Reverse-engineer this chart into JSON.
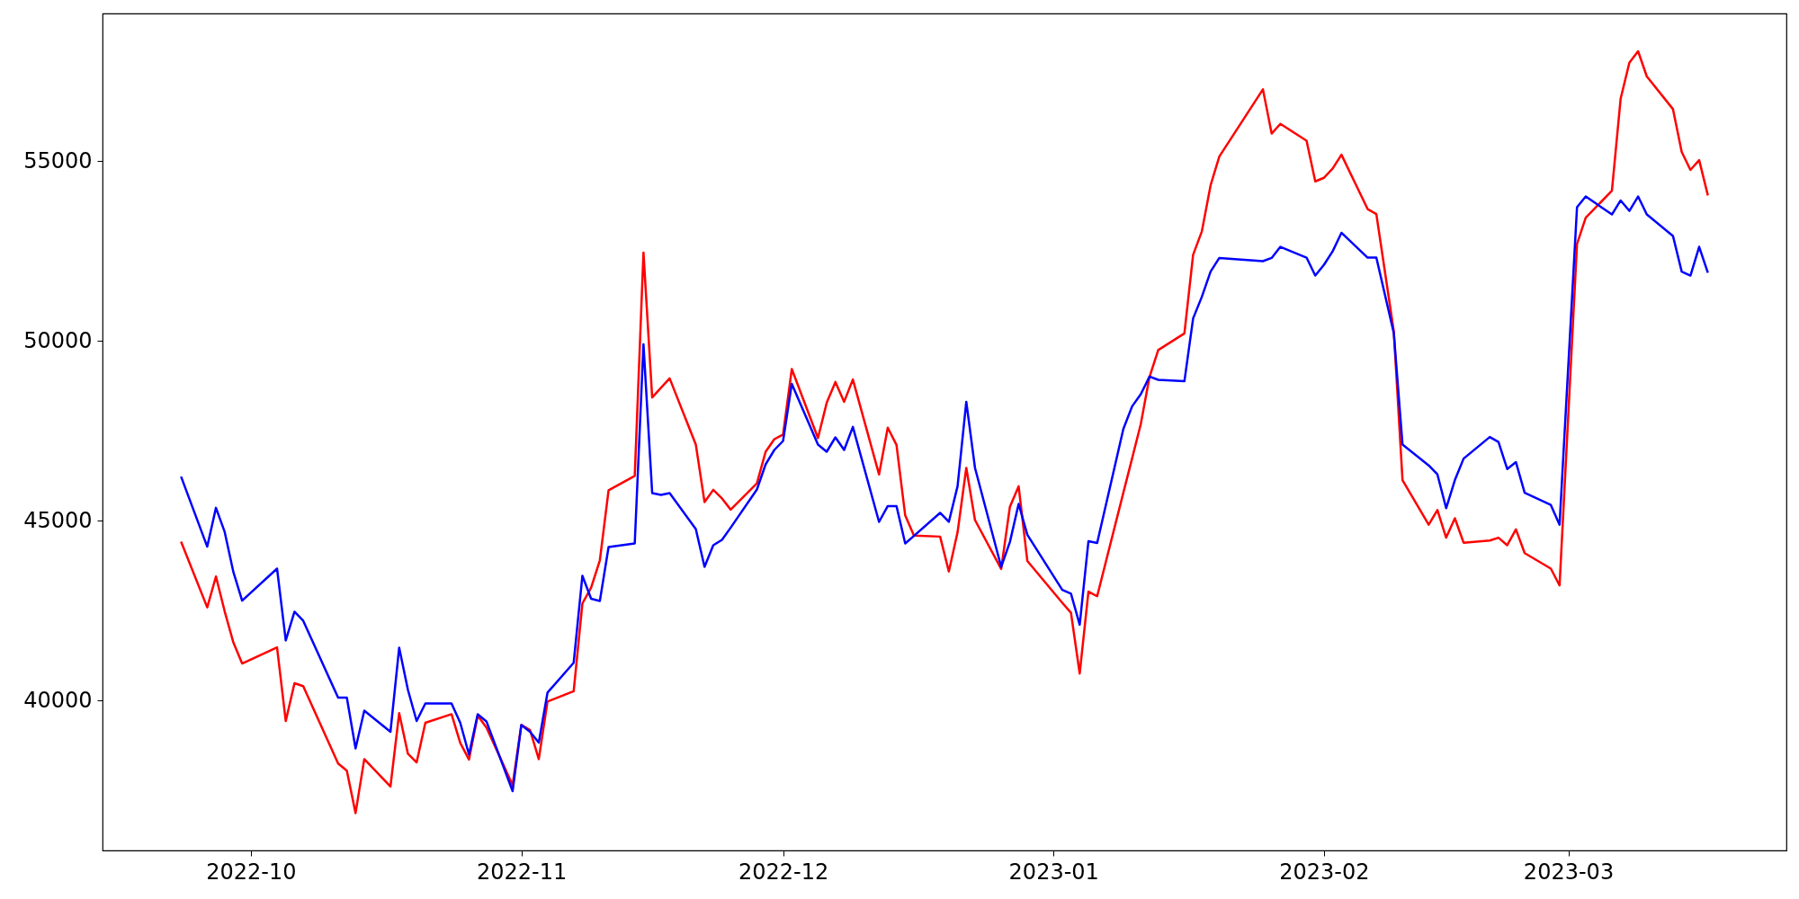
{
  "chart_data": {
    "type": "line",
    "x": [
      "2022-09-23",
      "2022-09-26",
      "2022-09-27",
      "2022-09-28",
      "2022-09-29",
      "2022-09-30",
      "2022-10-04",
      "2022-10-05",
      "2022-10-06",
      "2022-10-07",
      "2022-10-11",
      "2022-10-12",
      "2022-10-13",
      "2022-10-14",
      "2022-10-17",
      "2022-10-18",
      "2022-10-19",
      "2022-10-20",
      "2022-10-21",
      "2022-10-24",
      "2022-10-25",
      "2022-10-26",
      "2022-10-27",
      "2022-10-28",
      "2022-10-31",
      "2022-11-01",
      "2022-11-02",
      "2022-11-03",
      "2022-11-04",
      "2022-11-07",
      "2022-11-08",
      "2022-11-09",
      "2022-11-10",
      "2022-11-11",
      "2022-11-14",
      "2022-11-15",
      "2022-11-16",
      "2022-11-17",
      "2022-11-18",
      "2022-11-21",
      "2022-11-22",
      "2022-11-23",
      "2022-11-24",
      "2022-11-25",
      "2022-11-28",
      "2022-11-29",
      "2022-11-30",
      "2022-12-01",
      "2022-12-02",
      "2022-12-05",
      "2022-12-06",
      "2022-12-07",
      "2022-12-08",
      "2022-12-09",
      "2022-12-12",
      "2022-12-13",
      "2022-12-14",
      "2022-12-15",
      "2022-12-16",
      "2022-12-19",
      "2022-12-20",
      "2022-12-21",
      "2022-12-22",
      "2022-12-23",
      "2022-12-26",
      "2022-12-27",
      "2022-12-28",
      "2022-12-29",
      "2023-01-02",
      "2023-01-03",
      "2023-01-04",
      "2023-01-05",
      "2023-01-06",
      "2023-01-09",
      "2023-01-10",
      "2023-01-11",
      "2023-01-12",
      "2023-01-13",
      "2023-01-16",
      "2023-01-17",
      "2023-01-18",
      "2023-01-19",
      "2023-01-20",
      "2023-01-25",
      "2023-01-26",
      "2023-01-27",
      "2023-01-30",
      "2023-01-31",
      "2023-02-01",
      "2023-02-02",
      "2023-02-03",
      "2023-02-06",
      "2023-02-07",
      "2023-02-09",
      "2023-02-10",
      "2023-02-13",
      "2023-02-14",
      "2023-02-15",
      "2023-02-16",
      "2023-02-17",
      "2023-02-20",
      "2023-02-21",
      "2023-02-22",
      "2023-02-23",
      "2023-02-24",
      "2023-02-27",
      "2023-02-28",
      "2023-03-02",
      "2023-03-03",
      "2023-03-06",
      "2023-03-07",
      "2023-03-08",
      "2023-03-09",
      "2023-03-10",
      "2023-03-13",
      "2023-03-14",
      "2023-03-15",
      "2023-03-16",
      "2023-03-17"
    ],
    "series": [
      {
        "color": "#ff0000",
        "values": [
          44420,
          42590,
          43450,
          42480,
          41610,
          41030,
          41480,
          39430,
          40480,
          40400,
          38250,
          38050,
          36870,
          38370,
          37610,
          39650,
          38520,
          38280,
          39380,
          39620,
          38820,
          38360,
          39580,
          39250,
          37650,
          39320,
          39180,
          38370,
          39970,
          40260,
          42700,
          43140,
          43900,
          45850,
          46250,
          52460,
          48430,
          48700,
          48960,
          47120,
          45520,
          45860,
          45620,
          45310,
          46040,
          46920,
          47270,
          47400,
          49220,
          47300,
          48280,
          48860,
          48310,
          48930,
          46290,
          47590,
          47110,
          45150,
          44590,
          44560,
          43590,
          44680,
          46470,
          45020,
          43660,
          45390,
          45960,
          43880,
          42720,
          42440,
          40750,
          43030,
          42900,
          45780,
          46730,
          47690,
          49000,
          49750,
          50210,
          52400,
          53050,
          54330,
          55130,
          57000,
          55770,
          56040,
          55570,
          54440,
          54540,
          54800,
          55180,
          53670,
          53530,
          50270,
          46130,
          44890,
          45300,
          44530,
          45070,
          44390,
          44450,
          44530,
          44320,
          44760,
          44100,
          43670,
          43200,
          52700,
          53430,
          54180,
          56740,
          57740,
          58060,
          57360,
          56450,
          55260,
          54760,
          55030,
          54050
        ]
      },
      {
        "color": "#0000ff",
        "values": [
          46230,
          44280,
          45360,
          44690,
          43570,
          42780,
          43670,
          41670,
          42470,
          42220,
          40080,
          40080,
          38670,
          39720,
          39130,
          41470,
          40300,
          39430,
          39920,
          39920,
          39380,
          38500,
          39620,
          39420,
          37480,
          39320,
          39130,
          38830,
          40220,
          41050,
          43470,
          42830,
          42770,
          44270,
          44370,
          49910,
          45770,
          45720,
          45770,
          44770,
          43720,
          44320,
          44470,
          44810,
          45870,
          46570,
          46970,
          47220,
          48810,
          47120,
          46920,
          47320,
          46970,
          47610,
          44970,
          45410,
          45410,
          44370,
          44580,
          45220,
          44970,
          45960,
          48310,
          46470,
          43720,
          44410,
          45470,
          44610,
          43080,
          42970,
          42110,
          44430,
          44380,
          47550,
          48180,
          48520,
          49010,
          48920,
          48880,
          50630,
          51230,
          51930,
          52310,
          52220,
          52310,
          52620,
          52320,
          51820,
          52120,
          52500,
          53010,
          52320,
          52320,
          50220,
          47120,
          46540,
          46290,
          45350,
          46130,
          46730,
          47330,
          47190,
          46440,
          46630,
          45780,
          45440,
          44890,
          53720,
          54020,
          53520,
          53910,
          53620,
          54020,
          53520,
          52920,
          51930,
          51820,
          52620,
          51900
        ]
      }
    ],
    "xlim": [
      "2022-09-14",
      "2023-03-26"
    ],
    "ylim": [
      35830,
      59110
    ],
    "xticks": [
      {
        "value": "2022-10-01",
        "label": "2022-10"
      },
      {
        "value": "2022-11-01",
        "label": "2022-11"
      },
      {
        "value": "2022-12-01",
        "label": "2022-12"
      },
      {
        "value": "2023-01-01",
        "label": "2023-01"
      },
      {
        "value": "2023-02-01",
        "label": "2023-02"
      },
      {
        "value": "2023-03-01",
        "label": "2023-03"
      }
    ],
    "yticks": [
      40000,
      45000,
      50000,
      55000
    ]
  }
}
